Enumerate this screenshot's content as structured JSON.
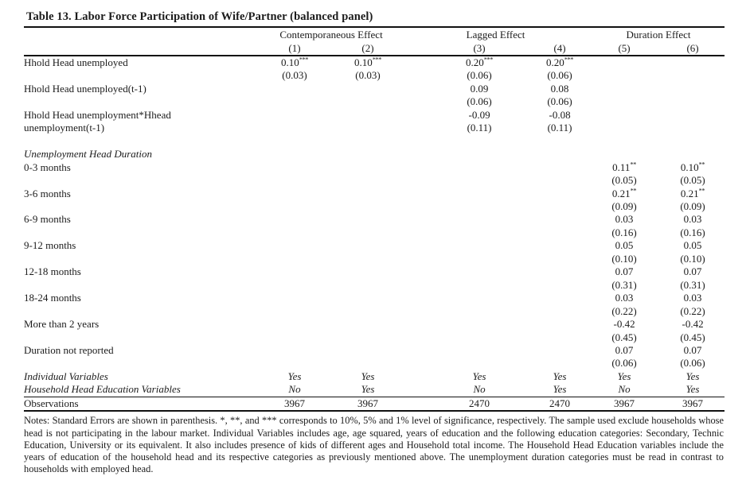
{
  "title": "Table 13. Labor Force Participation of Wife/Partner (balanced panel)",
  "header": {
    "groups": [
      {
        "label": "Contemporaneous Effect"
      },
      {
        "label": "Lagged Effect"
      },
      {
        "label": "Duration Effect"
      }
    ],
    "columns": [
      "(1)",
      "(2)",
      "(3)",
      "(4)",
      "(5)",
      "(6)"
    ]
  },
  "body": [
    {
      "type": "coef2",
      "label": "Hhold Head unemployed",
      "label2": "",
      "indent": 0,
      "coefs": [
        "0.10",
        "0.10",
        "0.20",
        "0.20",
        "",
        ""
      ],
      "stars": [
        "***",
        "***",
        "***",
        "***",
        "",
        ""
      ],
      "ses": [
        "(0.03)",
        "(0.03)",
        "(0.06)",
        "(0.06)",
        "",
        ""
      ]
    },
    {
      "type": "coef2",
      "label": "Hhold Head unemployed(t-1)",
      "label2": "",
      "indent": 0,
      "coefs": [
        "",
        "",
        "0.09",
        "0.08",
        "",
        ""
      ],
      "stars": [
        "",
        "",
        "",
        "",
        "",
        ""
      ],
      "ses": [
        "",
        "",
        "(0.06)",
        "(0.06)",
        "",
        ""
      ]
    },
    {
      "type": "coef2",
      "label": "Hhold Head unemployment*Hhead",
      "label2": "unemployment(t-1)",
      "indent": 0,
      "coefs": [
        "",
        "",
        "-0.09",
        "-0.08",
        "",
        ""
      ],
      "stars": [
        "",
        "",
        "",
        "",
        "",
        ""
      ],
      "ses": [
        "",
        "",
        "(0.11)",
        "(0.11)",
        "",
        ""
      ]
    },
    {
      "type": "blank"
    },
    {
      "type": "section",
      "label": "Unemployment Head Duration"
    },
    {
      "type": "coef2",
      "label": "0-3 months",
      "label2": "",
      "indent": 1,
      "coefs": [
        "",
        "",
        "",
        "",
        "0.11",
        "0.10"
      ],
      "stars": [
        "",
        "",
        "",
        "",
        "**",
        "**"
      ],
      "ses": [
        "",
        "",
        "",
        "",
        "(0.05)",
        "(0.05)"
      ]
    },
    {
      "type": "coef2",
      "label": "3-6 months",
      "label2": "",
      "indent": 1,
      "coefs": [
        "",
        "",
        "",
        "",
        "0.21",
        "0.21"
      ],
      "stars": [
        "",
        "",
        "",
        "",
        "**",
        "**"
      ],
      "ses": [
        "",
        "",
        "",
        "",
        "(0.09)",
        "(0.09)"
      ]
    },
    {
      "type": "coef2",
      "label": "6-9 months",
      "label2": "",
      "indent": 1,
      "coefs": [
        "",
        "",
        "",
        "",
        "0.03",
        "0.03"
      ],
      "stars": [
        "",
        "",
        "",
        "",
        "",
        ""
      ],
      "ses": [
        "",
        "",
        "",
        "",
        "(0.16)",
        "(0.16)"
      ]
    },
    {
      "type": "coef2",
      "label": "9-12 months",
      "label2": "",
      "indent": 1,
      "coefs": [
        "",
        "",
        "",
        "",
        "0.05",
        "0.05"
      ],
      "stars": [
        "",
        "",
        "",
        "",
        "",
        ""
      ],
      "ses": [
        "",
        "",
        "",
        "",
        "(0.10)",
        "(0.10)"
      ]
    },
    {
      "type": "coef2",
      "label": "12-18 months",
      "label2": "",
      "indent": 1,
      "coefs": [
        "",
        "",
        "",
        "",
        "0.07",
        "0.07"
      ],
      "stars": [
        "",
        "",
        "",
        "",
        "",
        ""
      ],
      "ses": [
        "",
        "",
        "",
        "",
        "(0.31)",
        "(0.31)"
      ]
    },
    {
      "type": "coef2",
      "label": "18-24 months",
      "label2": "",
      "indent": 1,
      "coefs": [
        "",
        "",
        "",
        "",
        "0.03",
        "0.03"
      ],
      "stars": [
        "",
        "",
        "",
        "",
        "",
        ""
      ],
      "ses": [
        "",
        "",
        "",
        "",
        "(0.22)",
        "(0.22)"
      ]
    },
    {
      "type": "coef2",
      "label": "More than 2 years",
      "label2": "",
      "indent": 1,
      "coefs": [
        "",
        "",
        "",
        "",
        "-0.42",
        "-0.42"
      ],
      "stars": [
        "",
        "",
        "",
        "",
        "",
        ""
      ],
      "ses": [
        "",
        "",
        "",
        "",
        "(0.45)",
        "(0.45)"
      ]
    },
    {
      "type": "coef2",
      "label": "Duration not reported",
      "label2": "",
      "indent": 1,
      "coefs": [
        "",
        "",
        "",
        "",
        "0.07",
        "0.07"
      ],
      "stars": [
        "",
        "",
        "",
        "",
        "",
        ""
      ],
      "ses": [
        "",
        "",
        "",
        "",
        "(0.06)",
        "(0.06)"
      ]
    },
    {
      "type": "flags",
      "label": "Individual Variables",
      "values": [
        "Yes",
        "Yes",
        "Yes",
        "Yes",
        "Yes",
        "Yes"
      ]
    },
    {
      "type": "flags",
      "label": "Household Head Education Variables",
      "values": [
        "No",
        "Yes",
        "No",
        "Yes",
        "No",
        "Yes"
      ]
    },
    {
      "type": "obs",
      "label": "Observations",
      "values": [
        "3967",
        "3967",
        "2470",
        "2470",
        "3967",
        "3967"
      ]
    }
  ],
  "notes": "Notes: Standard Errors are shown in parenthesis. *, **, and *** corresponds to 10%, 5% and 1% level of significance, respectively. The sample used exclude households whose head is not participating in the labour market. Individual Variables includes age, age squared, years of education and the following education categories: Secondary, Technic Education, University or its equivalent. It also includes presence of kids of different ages and Household total income. The Household Head Education variables include the years of education of the household head and its respective categories as previously mentioned above. The unemployment duration categories must be read in contrast to households with employed head."
}
